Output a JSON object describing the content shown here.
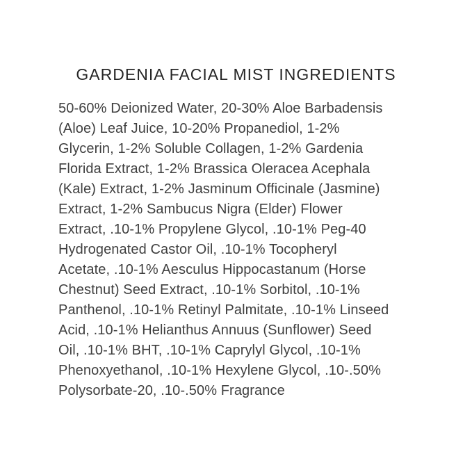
{
  "label": {
    "title": "GARDENIA FACIAL MIST INGREDIENTS",
    "ingredients_full": "50-60% Deionized Water, 20-30% Aloe Barbadensis (Aloe) Leaf Juice, 10-20% Propanediol, 1-2% Glycerin, 1-2% Soluble Collagen, 1-2% Gardenia Florida Extract, 1-2% Brassica Oleracea Acephala (Kale) Extract, 1-2% Jasminum Officinale (Jasmine) Extract, 1-2% Sambucus Nigra (Elder) Flower Extract, .10-1% Propylene Glycol, .10-1% Peg-40 Hydrogenated Castor Oil, .10-1% Tocopheryl Acetate, .10-1% Aesculus Hippocastanum (Horse Chestnut) Seed Extract, .10-1% Sorbitol, .10-1% Panthenol, .10-1% Retinyl Palmitate, .10-1% Linseed Acid, .10-1% Helianthus Annuus (Sunflower) Seed Oil, .10-1% BHT, .10-1% Caprylyl Glycol, .10-1% Phenoxyethanol, .10-1% Hexylene Glycol, .10-.50% Polysorbate-20, .10-.50% Fragrance",
    "lines": [
      "50-60% Deionized Water, 20-30% Aloe Barbadensis",
      "(Aloe) Leaf Juice, 10-20% Propanediol, 1-2%",
      "Glycerin, 1-2% Soluble Collagen, 1-2% Gardenia",
      "Florida Extract, 1-2% Brassica Oleracea Acephala",
      "(Kale) Extract, 1-2% Jasminum Officinale (Jasmine)",
      "Extract, 1-2% Sambucus Nigra (Elder) Flower",
      "Extract, .10-1% Propylene Glycol, .10-1% Peg-40",
      "Hydrogenated Castor Oil, .10-1% Tocopheryl",
      "Acetate, .10-1% Aesculus Hippocastanum (Horse",
      "Chestnut) Seed Extract, .10-1% Sorbitol, .10-1%",
      "Panthenol, .10-1% Retinyl Palmitate, .10-1% Linseed",
      "Acid, .10-1% Helianthus Annuus (Sunflower) Seed",
      "Oil, .10-1% BHT, .10-1% Caprylyl Glycol, .10-1%",
      "Phenoxyethanol, .10-1% Hexylene Glycol, .10-.50%",
      "Polysorbate-20, .10-.50% Fragrance"
    ],
    "colors": {
      "background": "#ffffff",
      "title_text": "#262626",
      "body_text": "#3f3f3f"
    }
  }
}
